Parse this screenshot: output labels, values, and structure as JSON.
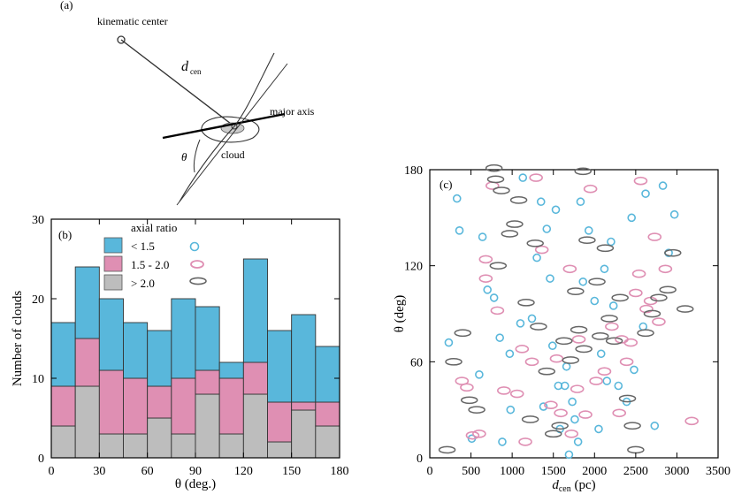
{
  "panel_a": {
    "label": "(a)",
    "kinematic_center": "kinematic center",
    "dcen_main": "d",
    "dcen_sub": "cen",
    "major_axis": "major axis",
    "cloud": "cloud",
    "theta": "θ"
  },
  "chart_data": [
    {
      "type": "bar",
      "stacked": true,
      "panel": "(b)",
      "xlabel": "θ (deg.)",
      "ylabel": "Number of clouds",
      "xlim": [
        0,
        180
      ],
      "ylim": [
        0,
        30
      ],
      "xticks": [
        0,
        30,
        60,
        90,
        120,
        150,
        180
      ],
      "yticks": [
        0,
        10,
        20,
        30
      ],
      "bin_width": 15,
      "bin_starts": [
        0,
        15,
        30,
        45,
        60,
        75,
        90,
        105,
        120,
        135,
        150,
        165
      ],
      "legend_title": "axial ratio",
      "series": [
        {
          "name": "> 2.0",
          "color": "#bdbdbd",
          "values": [
            4,
            9,
            3,
            3,
            5,
            3,
            8,
            3,
            8,
            2,
            6,
            4
          ]
        },
        {
          "name": "1.5 - 2.0",
          "color": "#df8fb3",
          "values": [
            5,
            6,
            8,
            7,
            4,
            7,
            3,
            7,
            4,
            5,
            1,
            3
          ]
        },
        {
          "name": "< 1.5",
          "color": "#59b7db",
          "values": [
            8,
            9,
            9,
            7,
            7,
            10,
            8,
            2,
            13,
            9,
            11,
            7
          ]
        }
      ]
    },
    {
      "type": "scatter",
      "panel": "(c)",
      "xlabel_main": "d",
      "xlabel_sub": "cen",
      "xlabel_unit": " (pc)",
      "ylabel": "θ (deg)",
      "xlim": [
        0,
        3500
      ],
      "ylim": [
        0,
        180
      ],
      "xticks": [
        0,
        500,
        1000,
        1500,
        2000,
        2500,
        3000,
        3500
      ],
      "yticks": [
        0,
        60,
        120,
        180
      ],
      "series": [
        {
          "name": "< 1.5",
          "color": "#59b7db",
          "points": [
            [
              230,
              72
            ],
            [
              330,
              162
            ],
            [
              360,
              142
            ],
            [
              510,
              12
            ],
            [
              600,
              52
            ],
            [
              700,
              105
            ],
            [
              780,
              100
            ],
            [
              850,
              75
            ],
            [
              970,
              65
            ],
            [
              1100,
              84
            ],
            [
              1300,
              125
            ],
            [
              1350,
              160
            ],
            [
              1420,
              143
            ],
            [
              1460,
              112
            ],
            [
              1490,
              70
            ],
            [
              1560,
              45
            ],
            [
              1640,
              45
            ],
            [
              1660,
              57
            ],
            [
              1730,
              35
            ],
            [
              1760,
              24
            ],
            [
              1830,
              160
            ],
            [
              1860,
              110
            ],
            [
              2000,
              98
            ],
            [
              2080,
              65
            ],
            [
              2150,
              48
            ],
            [
              2200,
              135
            ],
            [
              2290,
              45
            ],
            [
              2390,
              35
            ],
            [
              2480,
              55
            ],
            [
              2590,
              82
            ],
            [
              2730,
              20
            ],
            [
              2830,
              170
            ],
            [
              2900,
              128
            ],
            [
              2970,
              152
            ],
            [
              1130,
              175
            ],
            [
              1580,
              18
            ],
            [
              1690,
              2
            ],
            [
              1240,
              87
            ],
            [
              1930,
              142
            ],
            [
              2050,
              18
            ],
            [
              2450,
              150
            ],
            [
              2620,
              165
            ],
            [
              2230,
              95
            ],
            [
              1800,
              10
            ],
            [
              980,
              30
            ],
            [
              1530,
              155
            ],
            [
              1380,
              32
            ],
            [
              640,
              138
            ],
            [
              880,
              10
            ],
            [
              2120,
              118
            ]
          ]
        },
        {
          "name": "1.5 - 2.0",
          "color": "#df8fb3",
          "points": [
            [
              390,
              48
            ],
            [
              450,
              44
            ],
            [
              520,
              14
            ],
            [
              600,
              15
            ],
            [
              680,
              112
            ],
            [
              760,
              170
            ],
            [
              820,
              92
            ],
            [
              900,
              42
            ],
            [
              1060,
              40
            ],
            [
              1160,
              10
            ],
            [
              1240,
              60
            ],
            [
              1290,
              175
            ],
            [
              1360,
              130
            ],
            [
              1470,
              33
            ],
            [
              1540,
              62
            ],
            [
              1590,
              28
            ],
            [
              1720,
              15
            ],
            [
              1790,
              43
            ],
            [
              1810,
              74
            ],
            [
              1890,
              27
            ],
            [
              2020,
              48
            ],
            [
              2120,
              54
            ],
            [
              2210,
              82
            ],
            [
              2300,
              28
            ],
            [
              2330,
              74
            ],
            [
              2440,
              72
            ],
            [
              2500,
              103
            ],
            [
              2560,
              173
            ],
            [
              2630,
              93
            ],
            [
              2680,
              98
            ],
            [
              2730,
              138
            ],
            [
              2780,
              85
            ],
            [
              3180,
              23
            ],
            [
              680,
              124
            ],
            [
              1700,
              118
            ],
            [
              1950,
              168
            ],
            [
              2540,
              115
            ],
            [
              2390,
              60
            ],
            [
              1120,
              68
            ],
            [
              2860,
              118
            ]
          ]
        },
        {
          "name": "> 2.0",
          "color": "#666666",
          "points": [
            [
              290,
              60
            ],
            [
              400,
              78
            ],
            [
              480,
              36
            ],
            [
              570,
              30
            ],
            [
              800,
              174
            ],
            [
              830,
              120
            ],
            [
              870,
              167
            ],
            [
              970,
              140
            ],
            [
              1030,
              146
            ],
            [
              1170,
              97
            ],
            [
              1220,
              24
            ],
            [
              1280,
              134
            ],
            [
              1320,
              82
            ],
            [
              1420,
              54
            ],
            [
              1500,
              15
            ],
            [
              1580,
              20
            ],
            [
              1630,
              73
            ],
            [
              1710,
              61
            ],
            [
              1770,
              104
            ],
            [
              1810,
              80
            ],
            [
              1870,
              68
            ],
            [
              1910,
              136
            ],
            [
              2030,
              110
            ],
            [
              2070,
              76
            ],
            [
              2130,
              131
            ],
            [
              2180,
              87
            ],
            [
              2240,
              73
            ],
            [
              2310,
              100
            ],
            [
              2400,
              37
            ],
            [
              2460,
              20
            ],
            [
              2500,
              5
            ],
            [
              2620,
              78
            ],
            [
              2700,
              90
            ],
            [
              2780,
              100
            ],
            [
              2890,
              105
            ],
            [
              2950,
              128
            ],
            [
              3100,
              93
            ],
            [
              210,
              5
            ],
            [
              780,
              181
            ],
            [
              1860,
              179
            ],
            [
              1080,
              161
            ]
          ]
        }
      ]
    }
  ]
}
